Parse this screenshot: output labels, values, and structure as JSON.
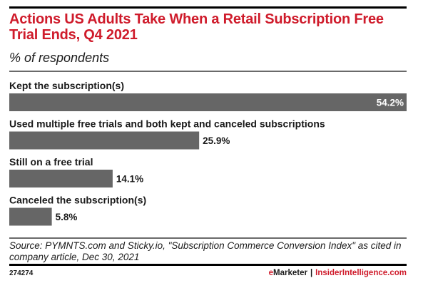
{
  "chart_data": {
    "type": "bar",
    "orientation": "horizontal",
    "title": "Actions US Adults Take When a Retail Subscription Free Trial Ends, Q4 2021",
    "subtitle": "% of respondents",
    "categories": [
      "Kept the subscription(s)",
      "Used multiple free trials and both kept and canceled subscriptions",
      "Still on a free trial",
      "Canceled the subscription(s)"
    ],
    "values": [
      54.2,
      25.9,
      14.1,
      5.8
    ],
    "value_labels": [
      "54.2%",
      "25.9%",
      "14.1%",
      "5.8%"
    ],
    "unit": "%",
    "xlabel": "",
    "ylabel": "",
    "xlim": [
      0,
      54.2
    ],
    "grid": false,
    "legend": "none",
    "bar_color": "#666666"
  },
  "header": {
    "title": "Actions US Adults Take When a Retail Subscription Free Trial Ends, Q4 2021",
    "subtitle": "% of respondents"
  },
  "footer": {
    "source": "Source: PYMNTS.com and Sticky.io, \"Subscription Commerce Conversion Index\" as cited in company article, Dec 30, 2021",
    "chart_id": "274274",
    "brand_e": "e",
    "brand_marketer": "Marketer",
    "brand_separator": "|",
    "brand_site": "InsiderIntelligence.com"
  },
  "colors": {
    "accent": "#cf1b2b",
    "bar": "#666666",
    "text": "#1a1a1a"
  }
}
